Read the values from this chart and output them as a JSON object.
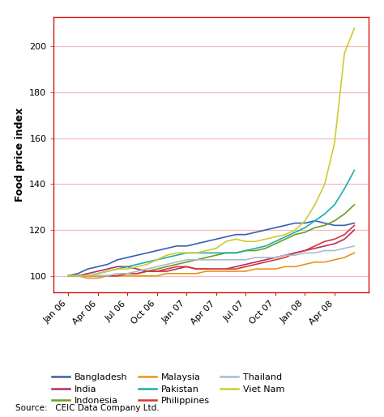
{
  "ylabel": "Food price index",
  "source": "Source:   CEIC Data Company Ltd.",
  "ylim": [
    93,
    213
  ],
  "yticks": [
    100,
    120,
    140,
    160,
    180,
    200
  ],
  "x_tick_labels": [
    "Jan 06",
    "Apr 06",
    "Jul 06",
    "Oct 06",
    "Jan 07",
    "Apr 07",
    "Jul 07",
    "Oct 07",
    "Jan 08",
    "Apr 08"
  ],
  "xtick_positions": [
    0,
    3,
    6,
    9,
    12,
    15,
    18,
    21,
    24,
    27
  ],
  "n_points": 30,
  "countries": {
    "Bangladesh": {
      "color": "#3a5fb0",
      "data": [
        100,
        101,
        103,
        104,
        105,
        107,
        108,
        109,
        110,
        111,
        112,
        113,
        113,
        114,
        115,
        116,
        117,
        118,
        118,
        119,
        120,
        121,
        122,
        123,
        123,
        124,
        123,
        122,
        122,
        123
      ]
    },
    "India": {
      "color": "#b03060",
      "data": [
        100,
        100,
        101,
        102,
        103,
        104,
        104,
        103,
        102,
        102,
        102,
        103,
        104,
        103,
        103,
        103,
        103,
        104,
        105,
        106,
        107,
        108,
        109,
        110,
        111,
        112,
        113,
        114,
        116,
        120
      ]
    },
    "Indonesia": {
      "color": "#6b9e1f",
      "data": [
        100,
        100,
        100,
        100,
        100,
        100,
        101,
        101,
        102,
        103,
        104,
        105,
        106,
        107,
        108,
        109,
        110,
        110,
        111,
        111,
        112,
        114,
        116,
        118,
        119,
        121,
        122,
        124,
        127,
        131
      ]
    },
    "Malaysia": {
      "color": "#e8941a",
      "data": [
        100,
        100,
        99,
        99,
        100,
        100,
        100,
        100,
        100,
        100,
        101,
        101,
        101,
        101,
        102,
        102,
        102,
        102,
        102,
        103,
        103,
        103,
        104,
        104,
        105,
        106,
        106,
        107,
        108,
        110
      ]
    },
    "Pakistan": {
      "color": "#1aadac",
      "data": [
        100,
        100,
        100,
        101,
        102,
        103,
        104,
        105,
        106,
        107,
        108,
        109,
        110,
        110,
        110,
        110,
        110,
        110,
        111,
        112,
        113,
        115,
        117,
        119,
        121,
        124,
        127,
        131,
        138,
        146
      ]
    },
    "Philippines": {
      "color": "#d93535",
      "data": [
        100,
        100,
        100,
        100,
        100,
        100,
        101,
        101,
        102,
        102,
        103,
        104,
        104,
        103,
        103,
        103,
        103,
        103,
        104,
        105,
        106,
        107,
        108,
        110,
        111,
        113,
        115,
        116,
        118,
        122
      ]
    },
    "Thailand": {
      "color": "#aabccc",
      "data": [
        100,
        100,
        100,
        100,
        100,
        101,
        101,
        102,
        103,
        104,
        105,
        106,
        107,
        107,
        107,
        107,
        107,
        107,
        107,
        108,
        108,
        108,
        109,
        109,
        110,
        110,
        111,
        111,
        112,
        113
      ]
    },
    "Viet Nam": {
      "color": "#cccc33",
      "data": [
        100,
        100,
        100,
        101,
        102,
        103,
        103,
        104,
        105,
        107,
        109,
        110,
        110,
        110,
        111,
        112,
        115,
        116,
        115,
        115,
        116,
        117,
        118,
        120,
        124,
        131,
        140,
        158,
        197,
        208
      ]
    }
  },
  "legend_order": [
    "Bangladesh",
    "India",
    "Indonesia",
    "Malaysia",
    "Pakistan",
    "Philippines",
    "Thailand",
    "Viet Nam"
  ],
  "background_color": "#ffffff",
  "grid_color": "#f7b8b8",
  "spine_color": "#dd1111"
}
